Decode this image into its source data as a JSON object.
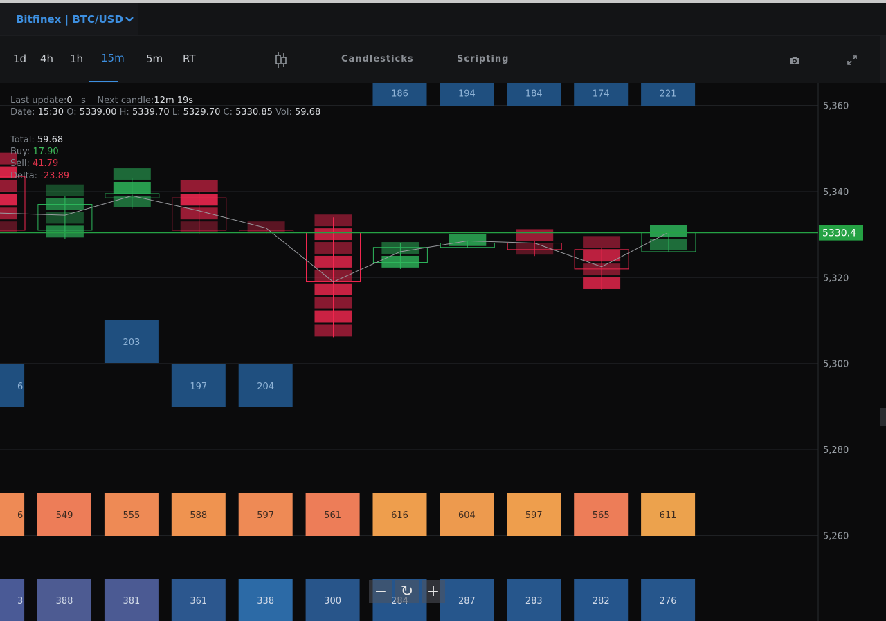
{
  "header": {
    "exchange_label": "Bitfinex | BTC/USD"
  },
  "toolbar": {
    "timeframes": [
      "1d",
      "4h",
      "1h",
      "15m",
      "5m",
      "RT"
    ],
    "active_timeframe": "15m",
    "chart_type_label": "Candlesticks",
    "scripting_label": "Scripting"
  },
  "info": {
    "last_update_label": "Last update:",
    "last_update_value": "0",
    "last_update_unit": "s",
    "next_candle_label": "Next candle:",
    "next_candle_value": "12m 19s",
    "date_label": "Date:",
    "date_value": "15:30",
    "open_label": "O:",
    "open_value": "5339.00",
    "high_label": "H:",
    "high_value": "5339.70",
    "low_label": "L:",
    "low_value": "5329.70",
    "close_label": "C:",
    "close_value": "5330.85",
    "vol_label": "Vol:",
    "vol_value": "59.68",
    "total_label": "Total:",
    "total_value": "59.68",
    "buy_label": "Buy:",
    "buy_value": "17.90",
    "sell_label": "Sell:",
    "sell_value": "41.79",
    "delta_label": "Delta:",
    "delta_value": "-23.89"
  },
  "price_axis": {
    "ticks": [
      "5,360",
      "5,340",
      "5,320",
      "5,300",
      "5,280",
      "5,260"
    ],
    "current_price": "5330.4"
  },
  "colors": {
    "bull": "#2eb85c",
    "bear": "#f0274f",
    "accent": "#3d8fe0",
    "price_tag": "#25a244"
  },
  "rows": {
    "row1": [
      "186",
      "194",
      "184",
      "174",
      "221"
    ],
    "row2": [
      "203"
    ],
    "row3": [
      "6",
      "197",
      "204"
    ],
    "row4": [
      "6",
      "549",
      "555",
      "588",
      "597",
      "561",
      "616",
      "604",
      "597",
      "565",
      "611"
    ],
    "row5": [
      "3",
      "388",
      "381",
      "361",
      "338",
      "300",
      "284",
      "287",
      "283",
      "282",
      "276"
    ]
  },
  "chart_data": {
    "type": "candlestick",
    "time_interval": "15m",
    "y_range": [
      5248,
      5367
    ],
    "current_price": 5330.4,
    "candles": [
      {
        "open": 5343.5,
        "high": 5347,
        "low": 5330,
        "close": 5331
      },
      {
        "open": 5331,
        "high": 5339,
        "low": 5329,
        "close": 5337
      },
      {
        "open": 5338.5,
        "high": 5343,
        "low": 5336,
        "close": 5339.5
      },
      {
        "open": 5338.5,
        "high": 5340,
        "low": 5330,
        "close": 5331
      },
      {
        "open": 5331,
        "high": 5331,
        "low": 5330,
        "close": 5330.5
      },
      {
        "open": 5330.5,
        "high": 5334,
        "low": 5306,
        "close": 5319
      },
      {
        "open": 5323.5,
        "high": 5328,
        "low": 5322,
        "close": 5327
      },
      {
        "open": 5327,
        "high": 5328.5,
        "low": 5327,
        "close": 5328
      },
      {
        "open": 5328,
        "high": 5328.5,
        "low": 5325,
        "close": 5326.5
      },
      {
        "open": 5326.5,
        "high": 5327,
        "low": 5317,
        "close": 5322
      },
      {
        "open": 5326,
        "high": 5330.5,
        "low": 5326,
        "close": 5330.5
      }
    ],
    "vwap_line": [
      5335,
      5334.5,
      5339,
      5335.5,
      5331.5,
      5319,
      5326,
      5328.5,
      5328,
      5322.5,
      5330.5
    ]
  }
}
